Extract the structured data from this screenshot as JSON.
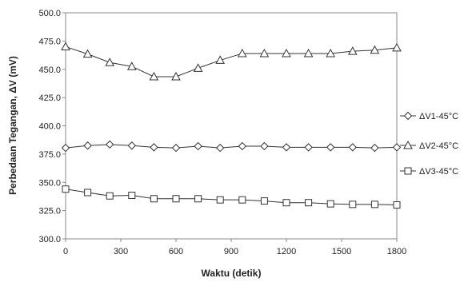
{
  "chart_data": {
    "type": "line",
    "xlabel": "Waktu (detik)",
    "ylabel": "Perbedaan Tegangan, ΔV (mV)",
    "xlim": [
      0,
      1800
    ],
    "ylim": [
      300,
      500
    ],
    "xticks": [
      0,
      300,
      600,
      900,
      1200,
      1500,
      1800
    ],
    "xtick_labels": [
      "0",
      "300",
      "600",
      "900",
      "1200",
      "1500",
      "1800"
    ],
    "yticks": [
      300,
      325,
      350,
      375,
      400,
      425,
      450,
      475,
      500
    ],
    "ytick_labels": [
      "300.0",
      "325.0",
      "350.0",
      "375.0",
      "400.0",
      "425.0",
      "450.0",
      "475.0",
      "500.0"
    ],
    "grid": false,
    "legend_position": "right",
    "x": [
      0,
      120,
      240,
      360,
      480,
      600,
      720,
      840,
      960,
      1080,
      1200,
      1320,
      1440,
      1560,
      1680,
      1800
    ],
    "series": [
      {
        "name": "ΔV1-45°C",
        "marker": "diamond",
        "values": [
          380.5,
          382.5,
          383.5,
          382.5,
          381,
          380.5,
          382,
          380.5,
          382,
          382,
          381,
          381,
          381,
          381,
          380.5,
          381
        ]
      },
      {
        "name": "ΔV2-45°C",
        "marker": "triangle",
        "values": [
          470,
          463.5,
          456,
          452.5,
          443.5,
          443.5,
          451,
          458,
          464,
          464,
          464,
          464,
          464,
          466,
          467,
          469
        ]
      },
      {
        "name": "ΔV3-45°C",
        "marker": "square",
        "values": [
          344,
          341,
          338,
          338.5,
          335.5,
          335.5,
          335.5,
          334.5,
          334.5,
          333.5,
          332,
          332,
          331,
          330.5,
          330.5,
          330
        ]
      }
    ]
  }
}
